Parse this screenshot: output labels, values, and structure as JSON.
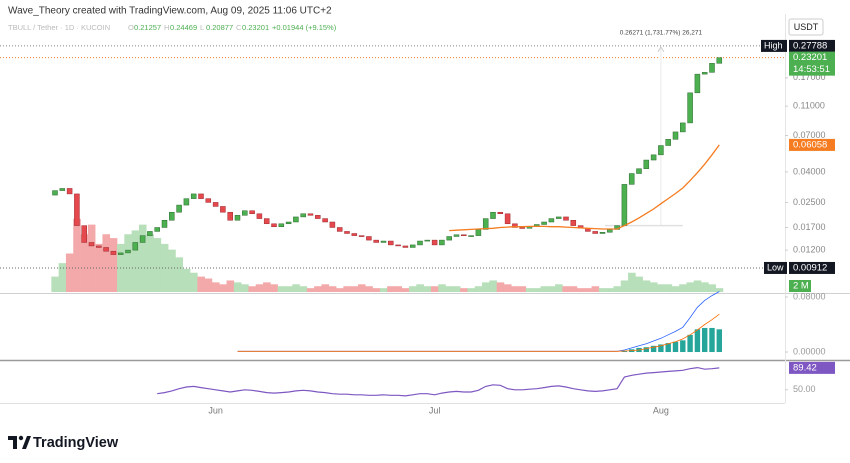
{
  "header": {
    "credit": "Wave_Theory created with TradingView.com, Aug 09, 2025 11:06 UTC+2",
    "symbol": "TBULL / Tether · 1D · KUCOIN",
    "ohlc": [
      {
        "key": "O",
        "text": "0.21257"
      },
      {
        "key": "H",
        "text": "0.24469"
      },
      {
        "key": "L",
        "text": "0.20877"
      },
      {
        "key": "C",
        "text": "0.23201"
      }
    ],
    "change": "+0.01944 (+9.15%)"
  },
  "chart_data": {
    "type": "candlestick",
    "categories": [
      null,
      null,
      null,
      null,
      null,
      null,
      null,
      null,
      null,
      null,
      null,
      null,
      null,
      null,
      null,
      null,
      null,
      null,
      null,
      null,
      null,
      null,
      "Jun",
      null,
      null,
      null,
      null,
      null,
      null,
      null,
      null,
      null,
      null,
      null,
      null,
      null,
      null,
      null,
      null,
      null,
      null,
      null,
      null,
      null,
      null,
      null,
      null,
      null,
      null,
      null,
      null,
      null,
      "Jul",
      null,
      null,
      null,
      null,
      null,
      null,
      null,
      null,
      null,
      null,
      null,
      null,
      null,
      null,
      null,
      null,
      null,
      null,
      null,
      null,
      null,
      null,
      null,
      null,
      null,
      null,
      null,
      null,
      null,
      null,
      "Aug",
      null,
      null,
      null,
      null,
      null,
      null,
      null,
      null
    ],
    "open": [
      0.028,
      0.03,
      0.031,
      0.0285,
      0.0175,
      0.0135,
      0.0128,
      0.0125,
      0.0118,
      0.0112,
      0.0115,
      0.012,
      0.0135,
      0.015,
      0.016,
      0.017,
      0.019,
      0.0215,
      0.024,
      0.0265,
      0.0285,
      0.0265,
      0.025,
      0.0235,
      0.0215,
      0.019,
      0.0205,
      0.022,
      0.021,
      0.0195,
      0.018,
      0.0172,
      0.018,
      0.0185,
      0.02,
      0.021,
      0.0205,
      0.0195,
      0.0185,
      0.017,
      0.016,
      0.0155,
      0.015,
      0.0148,
      0.014,
      0.0135,
      0.0138,
      0.013,
      0.0128,
      0.0125,
      0.013,
      0.0138,
      0.014,
      0.013,
      0.014,
      0.0148,
      0.0152,
      0.015,
      0.015,
      0.0165,
      0.0195,
      0.0215,
      0.021,
      0.018,
      0.017,
      0.0168,
      0.0172,
      0.0178,
      0.0185,
      0.0195,
      0.02,
      0.019,
      0.0175,
      0.0168,
      0.016,
      0.0155,
      0.0158,
      0.0165,
      0.0175,
      0.033,
      0.039,
      0.042,
      0.048,
      0.052,
      0.06,
      0.066,
      0.074,
      0.085,
      0.135,
      0.18,
      0.185,
      0.21257
    ],
    "close": [
      0.03,
      0.031,
      0.0285,
      0.0175,
      0.0135,
      0.0128,
      0.0125,
      0.0118,
      0.0112,
      0.0115,
      0.012,
      0.0135,
      0.015,
      0.016,
      0.017,
      0.019,
      0.0215,
      0.024,
      0.0265,
      0.0285,
      0.0265,
      0.025,
      0.0235,
      0.0215,
      0.019,
      0.0205,
      0.022,
      0.021,
      0.0195,
      0.018,
      0.0172,
      0.018,
      0.0185,
      0.02,
      0.021,
      0.0205,
      0.0195,
      0.0185,
      0.017,
      0.016,
      0.0155,
      0.015,
      0.0148,
      0.014,
      0.0135,
      0.0138,
      0.013,
      0.0128,
      0.0125,
      0.013,
      0.0138,
      0.014,
      0.013,
      0.014,
      0.0148,
      0.0152,
      0.015,
      0.015,
      0.0165,
      0.0195,
      0.0215,
      0.021,
      0.018,
      0.017,
      0.0168,
      0.0172,
      0.0178,
      0.0185,
      0.0195,
      0.02,
      0.019,
      0.0175,
      0.0168,
      0.016,
      0.0155,
      0.0158,
      0.0165,
      0.0175,
      0.033,
      0.039,
      0.042,
      0.048,
      0.052,
      0.06,
      0.066,
      0.074,
      0.085,
      0.135,
      0.18,
      0.185,
      0.21257,
      0.23201
    ],
    "up_color": "#4caf50",
    "down_color": "#e5484d",
    "ylim": [
      0.0063,
      0.355
    ],
    "log_scale": true,
    "yticks": [
      {
        "value": 0.17,
        "label": "0.17000"
      },
      {
        "value": 0.11,
        "label": "0.11000"
      },
      {
        "value": 0.07,
        "label": "0.07000"
      },
      {
        "value": 0.04,
        "label": "0.04000"
      },
      {
        "value": 0.025,
        "label": "0.02500"
      },
      {
        "value": 0.017,
        "label": "0.01700"
      },
      {
        "value": 0.012,
        "label": "0.01200"
      }
    ],
    "currency": "USDT",
    "high_marker": {
      "label": "High",
      "value": 0.27788,
      "value_label": "0.27788"
    },
    "low_marker": {
      "label": "Low",
      "value": 0.00912,
      "value_label": "0.00912"
    },
    "last_price": {
      "value": 0.23201,
      "value_label": "0.23201",
      "countdown": "14:53:51"
    },
    "annotation": "0.26271 (1,731.77%) 26,271",
    "ma": {
      "color": "#f57c20",
      "values": [
        null,
        null,
        null,
        null,
        null,
        null,
        null,
        null,
        null,
        null,
        null,
        null,
        null,
        null,
        null,
        null,
        null,
        null,
        null,
        null,
        null,
        null,
        null,
        null,
        null,
        null,
        null,
        null,
        null,
        null,
        null,
        null,
        null,
        null,
        null,
        null,
        null,
        null,
        null,
        null,
        null,
        null,
        null,
        null,
        null,
        null,
        null,
        null,
        null,
        null,
        null,
        null,
        null,
        null,
        0.0162,
        0.0163,
        0.0164,
        0.0165,
        0.0166,
        0.0167,
        0.0168,
        0.017,
        0.0171,
        0.0172,
        0.0172,
        0.0173,
        0.0173,
        0.0173,
        0.0172,
        0.0172,
        0.0171,
        0.017,
        0.0169,
        0.0168,
        0.0167,
        0.0166,
        0.0166,
        0.0166,
        0.0175,
        0.0185,
        0.0197,
        0.0211,
        0.0226,
        0.0245,
        0.0265,
        0.0287,
        0.0312,
        0.035,
        0.0395,
        0.045,
        0.052,
        0.06058
      ],
      "value_label": "0.06058"
    },
    "volume": {
      "values": [
        8,
        15,
        20,
        38,
        30,
        35,
        25,
        30,
        28,
        25,
        30,
        32,
        35,
        30,
        28,
        25,
        22,
        18,
        12,
        10,
        8,
        7,
        5,
        4,
        6,
        5,
        4,
        3,
        4,
        5,
        4,
        3,
        3,
        4,
        3,
        2,
        3,
        4,
        3,
        2,
        3,
        3,
        4,
        3,
        2,
        2,
        3,
        3,
        2,
        3,
        4,
        3,
        3,
        4,
        3,
        3,
        2,
        2,
        3,
        5,
        6,
        5,
        4,
        3,
        3,
        2,
        2,
        3,
        3,
        4,
        3,
        3,
        2,
        2,
        3,
        2,
        2,
        3,
        6,
        10,
        8,
        6,
        5,
        4,
        4,
        3,
        4,
        5,
        6,
        5,
        4,
        2
      ],
      "ylim": [
        0,
        40
      ],
      "up_color": "#b7dfb9",
      "down_color": "#f3a9a9",
      "last_label": "2 M"
    },
    "macd": {
      "ylim": [
        -0.0087,
        0.0829
      ],
      "yticks": [
        {
          "value": 0.08,
          "label": "0.08000"
        },
        {
          "value": 0,
          "label": "0.00000"
        }
      ],
      "macd_color": "#2962ff",
      "signal_color": "#ff6d00",
      "hist_color": "#26a69a",
      "macd": [
        null,
        null,
        null,
        null,
        null,
        null,
        null,
        null,
        null,
        null,
        null,
        null,
        null,
        null,
        null,
        null,
        null,
        null,
        null,
        null,
        null,
        null,
        null,
        null,
        null,
        0.001,
        0.001,
        0.001,
        0.001,
        0.001,
        0.001,
        0.001,
        0.001,
        0.001,
        0.001,
        0.001,
        0.001,
        0.001,
        0.001,
        0.001,
        0.001,
        0.001,
        0.001,
        0.001,
        0.001,
        0.001,
        0.001,
        0.001,
        0.001,
        0.001,
        0.001,
        0.001,
        0.001,
        0.001,
        0.001,
        0.001,
        0.001,
        0.001,
        0.001,
        0.001,
        0.001,
        0.001,
        0.001,
        0.001,
        0.001,
        0.001,
        0.001,
        0.001,
        0.001,
        0.001,
        0.001,
        0.001,
        0.001,
        0.001,
        0.001,
        0.001,
        0.001,
        0.001,
        0.003,
        0.006,
        0.009,
        0.012,
        0.016,
        0.02,
        0.025,
        0.03,
        0.036,
        0.05,
        0.065,
        0.075,
        0.082,
        0.088
      ],
      "signal": [
        null,
        null,
        null,
        null,
        null,
        null,
        null,
        null,
        null,
        null,
        null,
        null,
        null,
        null,
        null,
        null,
        null,
        null,
        null,
        null,
        null,
        null,
        null,
        null,
        null,
        0.001,
        0.001,
        0.001,
        0.001,
        0.001,
        0.001,
        0.001,
        0.001,
        0.001,
        0.001,
        0.001,
        0.001,
        0.001,
        0.001,
        0.001,
        0.001,
        0.001,
        0.001,
        0.001,
        0.001,
        0.001,
        0.001,
        0.001,
        0.001,
        0.001,
        0.001,
        0.001,
        0.001,
        0.001,
        0.001,
        0.001,
        0.001,
        0.001,
        0.001,
        0.001,
        0.001,
        0.001,
        0.001,
        0.001,
        0.001,
        0.001,
        0.001,
        0.001,
        0.001,
        0.001,
        0.001,
        0.001,
        0.001,
        0.001,
        0.001,
        0.001,
        0.001,
        0.001,
        0.0015,
        0.002,
        0.003,
        0.005,
        0.007,
        0.009,
        0.012,
        0.015,
        0.019,
        0.025,
        0.032,
        0.04,
        0.047,
        0.055
      ],
      "hist": [
        null,
        null,
        null,
        null,
        null,
        null,
        null,
        null,
        null,
        null,
        null,
        null,
        null,
        null,
        null,
        null,
        null,
        null,
        null,
        null,
        null,
        null,
        null,
        null,
        null,
        null,
        null,
        null,
        null,
        null,
        null,
        null,
        null,
        null,
        null,
        null,
        null,
        null,
        null,
        null,
        null,
        null,
        null,
        null,
        null,
        null,
        null,
        null,
        null,
        null,
        null,
        null,
        null,
        null,
        null,
        null,
        null,
        null,
        null,
        null,
        null,
        null,
        null,
        null,
        null,
        null,
        null,
        null,
        null,
        null,
        null,
        null,
        null,
        null,
        null,
        null,
        null,
        null,
        0.0015,
        0.004,
        0.006,
        0.007,
        0.009,
        0.011,
        0.013,
        0.015,
        0.017,
        0.025,
        0.033,
        0.035,
        0.035,
        0.033
      ]
    },
    "rsi": {
      "ylim": [
        28,
        100
      ],
      "yticks": [
        {
          "value": 50,
          "label": "50.00"
        }
      ],
      "color": "#7e57c2",
      "values": [
        null,
        null,
        null,
        null,
        null,
        null,
        null,
        null,
        null,
        null,
        null,
        null,
        null,
        null,
        43,
        45,
        48,
        52,
        55,
        56,
        54,
        52,
        50,
        48,
        46,
        48,
        50,
        49,
        47,
        45,
        44,
        45,
        46,
        48,
        49,
        48,
        46,
        45,
        43,
        42,
        42,
        41,
        41,
        40,
        40,
        41,
        40,
        40,
        39,
        41,
        43,
        43,
        41,
        44,
        46,
        47,
        46,
        46,
        49,
        56,
        59,
        58,
        52,
        50,
        50,
        51,
        52,
        54,
        56,
        57,
        55,
        52,
        50,
        48,
        47,
        48,
        50,
        52,
        73,
        76,
        78,
        80,
        81,
        82,
        83,
        84,
        85,
        88,
        90,
        87,
        88,
        89.42
      ],
      "value_label": "89.42"
    }
  },
  "footer": {
    "logo": "TradingView"
  }
}
